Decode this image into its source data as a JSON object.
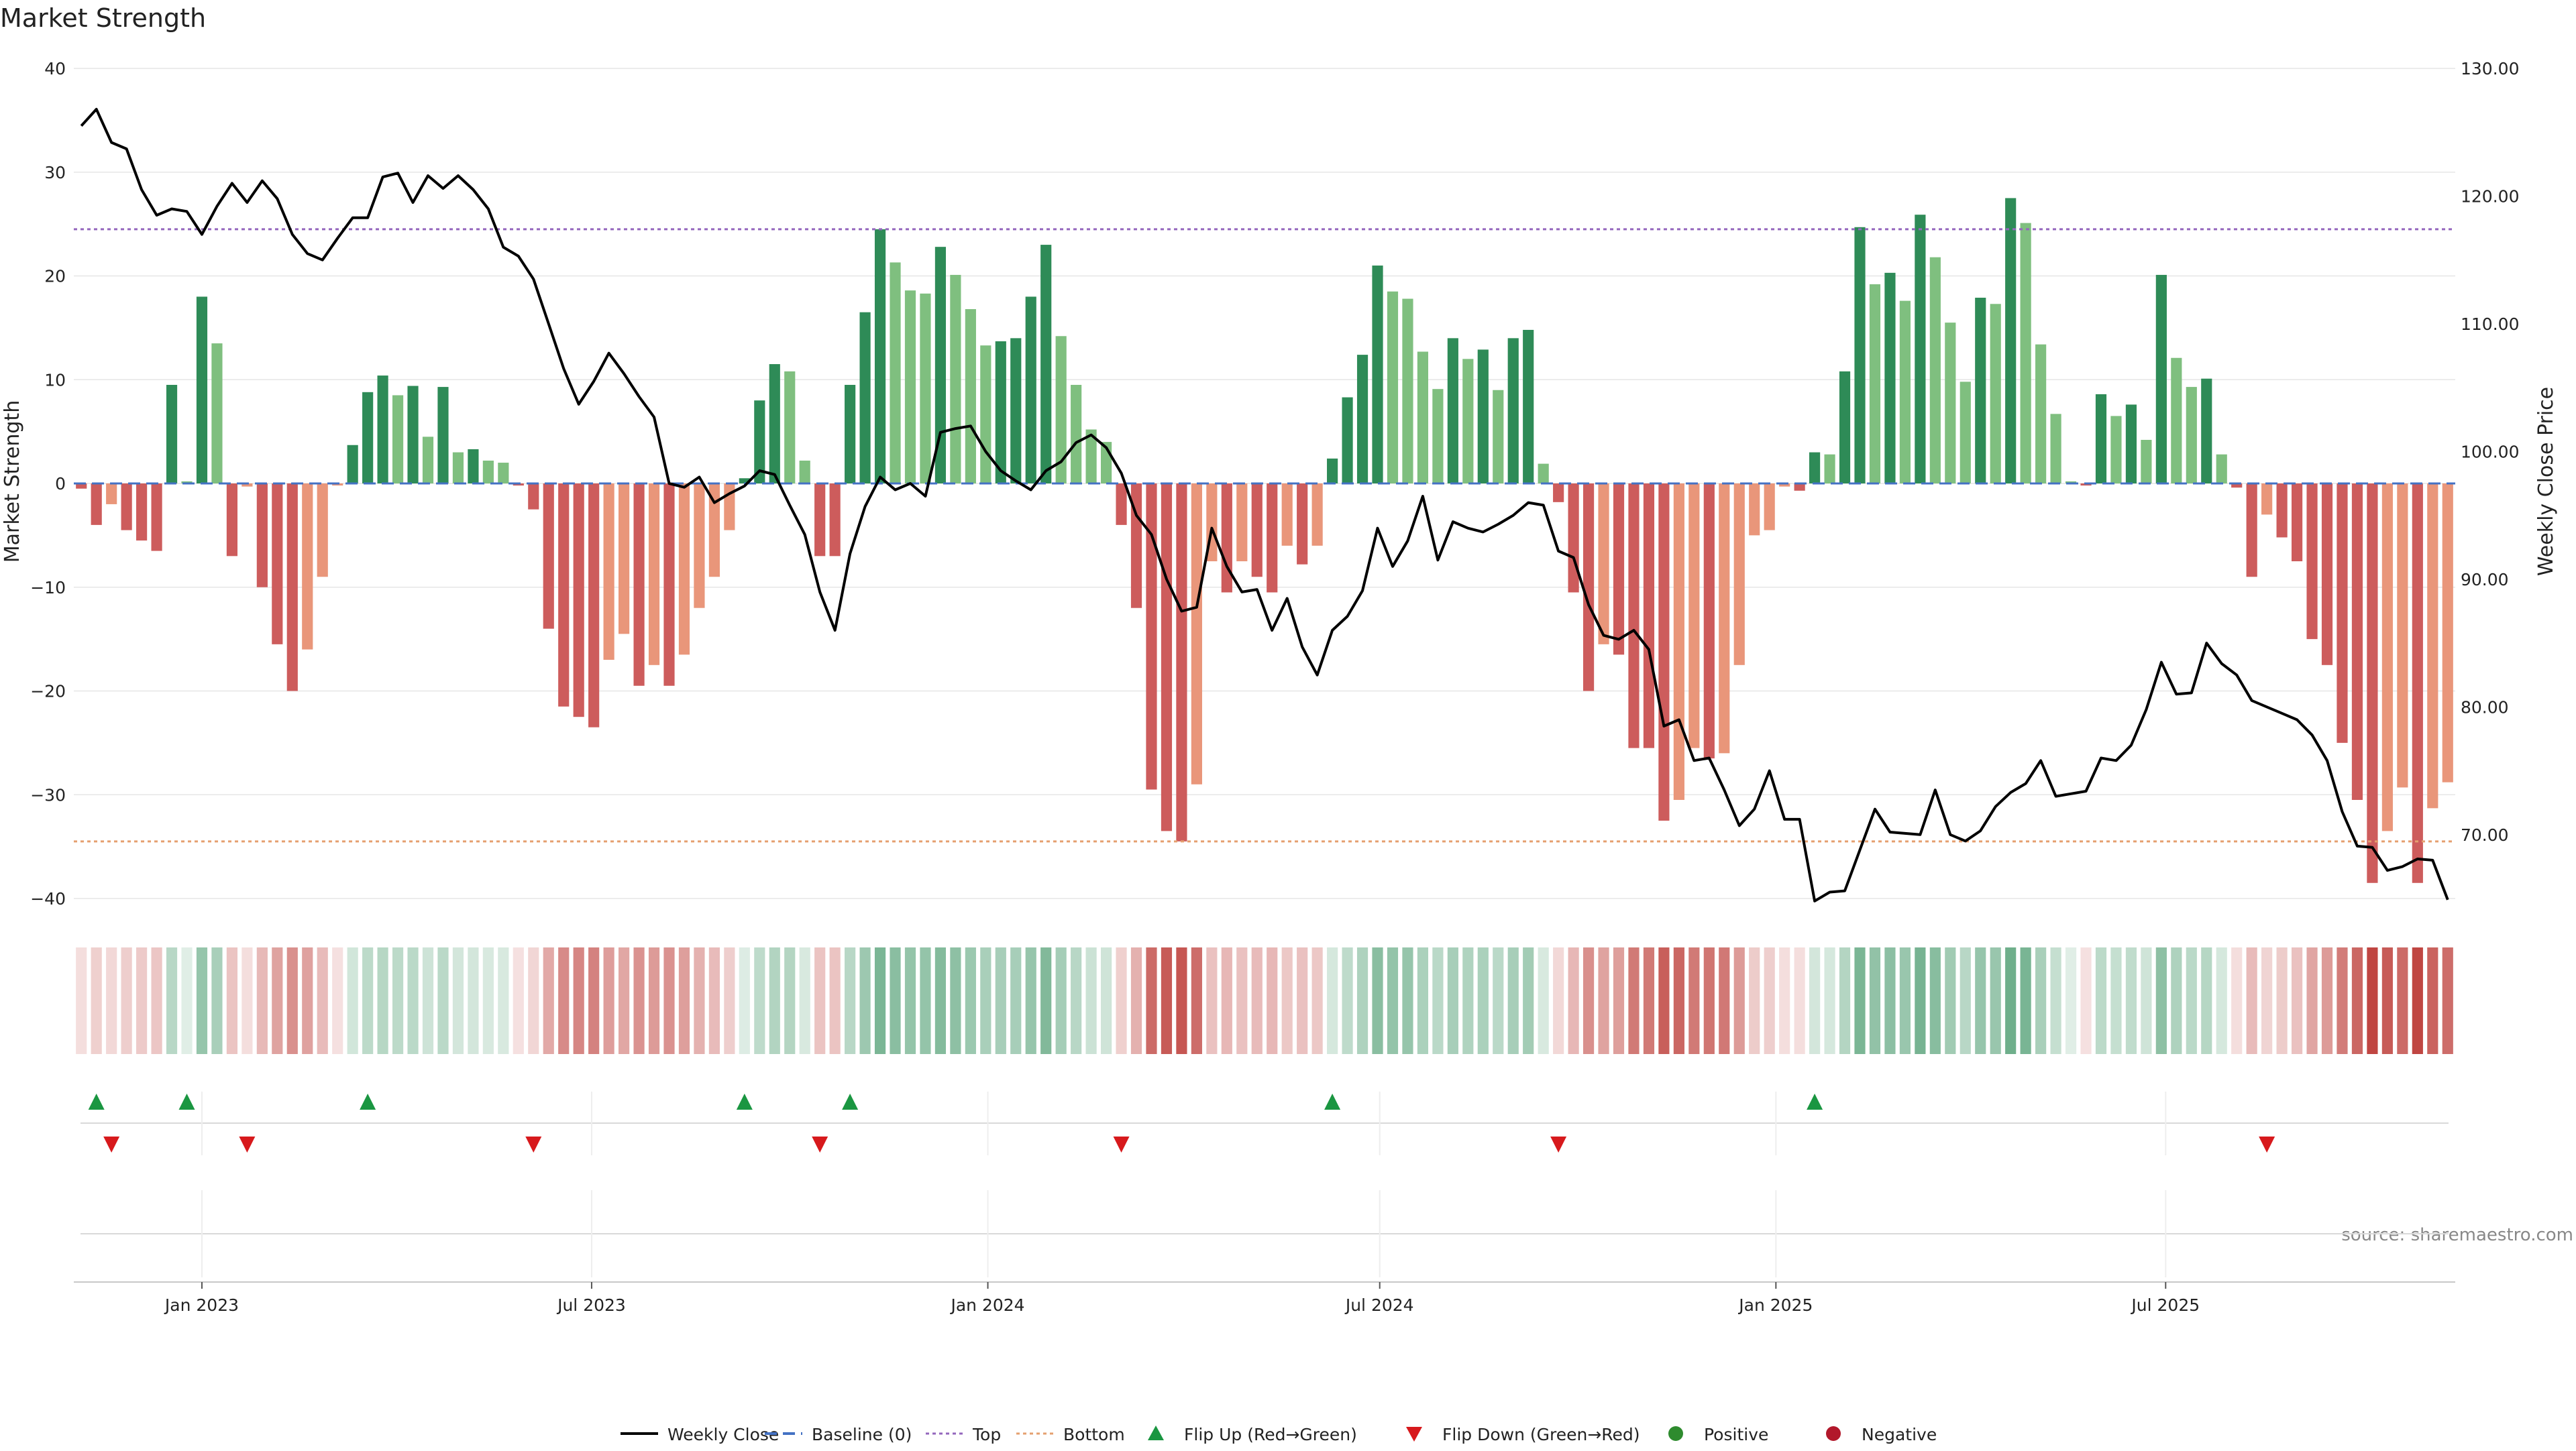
{
  "chart_data": {
    "type": "bar",
    "title": "Market Strength",
    "ylabel": "Market Strength",
    "y2label": "Weekly Close Price",
    "ylim": [
      -40,
      40
    ],
    "y2lim": [
      65,
      130
    ],
    "yticks": [
      40,
      30,
      20,
      10,
      0,
      -10,
      -20,
      -30,
      -40
    ],
    "yticks_labels": [
      "40",
      "30",
      "20",
      "10",
      "0",
      "−10",
      "−20",
      "−30",
      "−40"
    ],
    "y2ticks": [
      130,
      120,
      110,
      100,
      90,
      80,
      70
    ],
    "y2ticks_labels": [
      "130.00",
      "120.00",
      "110.00",
      "100.00",
      "90.00",
      "80.00",
      "70.00"
    ],
    "xticks": [
      "2023-01-01",
      "2023-07-01",
      "2024-01-01",
      "2024-07-01",
      "2025-01-01",
      "2025-07-01"
    ],
    "xticks_labels": [
      "Jan 2023",
      "Jul 2023",
      "Jan 2024",
      "Jul 2024",
      "Jan 2025",
      "Jul 2025"
    ],
    "x_start": "2022-11-06",
    "week_days": 7,
    "top_line": 24.5,
    "bottom_line": -34.5,
    "baseline": 0,
    "grid": true,
    "legend_position": "bottom-center",
    "series": [
      {
        "name": "Market Strength",
        "values": [
          -0.5,
          -4,
          -2,
          -4.5,
          -5.5,
          -6.5,
          9.5,
          0.2,
          18,
          13.5,
          -7,
          -0.3,
          -10,
          -15.5,
          -20,
          -16,
          -9,
          -0.2,
          3.7,
          8.8,
          10.4,
          8.5,
          9.4,
          4.5,
          9.3,
          3,
          3.3,
          2.2,
          2,
          -0.2,
          -2.5,
          -14,
          -21.5,
          -22.5,
          -23.5,
          -17,
          -14.5,
          -19.5,
          -17.5,
          -19.5,
          -16.5,
          -12,
          -9,
          -4.5,
          0.5,
          8,
          11.5,
          10.8,
          2.2,
          -7,
          -7,
          9.5,
          16.5,
          24.5,
          21.3,
          18.6,
          18.3,
          22.8,
          20.1,
          16.8,
          13.3,
          13.7,
          14,
          18,
          23,
          14.2,
          9.5,
          5.2,
          4,
          -4,
          -12,
          -29.5,
          -33.5,
          -34.5,
          -29,
          -7.5,
          -10.5,
          -7.5,
          -9,
          -10.5,
          -6,
          -7.8,
          -6,
          2.4,
          8.3,
          12.4,
          21,
          18.5,
          17.8,
          12.7,
          9.1,
          14,
          12,
          12.9,
          9,
          14,
          14.8,
          1.9,
          -1.8,
          -10.5,
          -20,
          -15.5,
          -16.5,
          -25.5,
          -25.5,
          -32.5,
          -30.5,
          -25.5,
          -26.5,
          -26,
          -17.5,
          -5,
          -4.5,
          -0.3,
          -0.7,
          3,
          2.8,
          10.8,
          24.7,
          19.2,
          20.3,
          17.6,
          25.9,
          21.8,
          15.5,
          9.8,
          17.9,
          17.3,
          27.5,
          25.1,
          13.4,
          6.7,
          0.2,
          -0.2,
          8.6,
          6.5,
          7.6,
          4.2,
          20.1,
          12.1,
          9.3,
          10.1,
          2.8,
          -0.4,
          -9,
          -3,
          -5.2,
          -7.5,
          -15,
          -17.5,
          -25,
          -30.5,
          -38.5,
          -33.5,
          -29.3,
          -38.5,
          -31.3,
          -28.8
        ]
      },
      {
        "name": "Weekly Close",
        "values": [
          125.5,
          126.8,
          124.2,
          123.7,
          120.5,
          118.5,
          119,
          118.8,
          117,
          119.2,
          121,
          119.5,
          121.2,
          119.8,
          117,
          115.5,
          115,
          116.7,
          118.3,
          118.3,
          121.5,
          121.8,
          119.5,
          121.6,
          120.6,
          121.6,
          120.5,
          119,
          116,
          115.3,
          113.5,
          110,
          106.5,
          103.7,
          105.5,
          107.7,
          106.1,
          104.3,
          102.7,
          97.5,
          97.2,
          98,
          96,
          96.7,
          97.3,
          98.5,
          98.2,
          95.8,
          93.5,
          89,
          86,
          92,
          95.7,
          98,
          97,
          97.5,
          96.5,
          101.5,
          101.8,
          102,
          100,
          98.5,
          97.7,
          97,
          98.5,
          99.2,
          100.7,
          101.3,
          100.3,
          98.3,
          95,
          93.5,
          90,
          87.5,
          87.8,
          94,
          91,
          89,
          89.2,
          86,
          88.5,
          84.7,
          82.5,
          86,
          87.1,
          89.1,
          94,
          91,
          93,
          96.5,
          91.5,
          94.5,
          94,
          93.7,
          94.3,
          95,
          96,
          95.8,
          92.2,
          91.7,
          88,
          85.6,
          85.3,
          86,
          84.5,
          78.5,
          79,
          75.8,
          76,
          73.5,
          70.7,
          72,
          75,
          71.2,
          71.2,
          64.8,
          65.5,
          65.6,
          68.8,
          72,
          70.2,
          70.1,
          70,
          73.5,
          70,
          69.5,
          70.3,
          72.2,
          73.3,
          74,
          75.8,
          73,
          73.2,
          73.4,
          76,
          75.8,
          77,
          79.8,
          83.5,
          81,
          81.1,
          85,
          83.4,
          82.5,
          80.5,
          80,
          79.5,
          79,
          77.8,
          75.8,
          71.8,
          69.1,
          69,
          67.2,
          67.5,
          68.1,
          68,
          64.9
        ]
      }
    ],
    "flip_up_weeks": [
      1,
      7,
      19,
      44,
      51,
      83,
      115
    ],
    "flip_down_weeks": [
      2,
      11,
      30,
      49,
      69,
      98,
      145
    ],
    "legend": [
      {
        "label": "Weekly Close",
        "symbol": "line",
        "color": "#000000"
      },
      {
        "label": "Baseline (0)",
        "symbol": "dash",
        "color": "#4472c4"
      },
      {
        "label": "Top",
        "symbol": "dot",
        "color": "#9467bd"
      },
      {
        "label": "Bottom",
        "symbol": "dot",
        "color": "#e5a070"
      },
      {
        "label": "Flip Up (Red→Green)",
        "symbol": "tri-up",
        "color": "#1a9641"
      },
      {
        "label": "Flip Down (Green→Red)",
        "symbol": "tri-down",
        "color": "#d7191c"
      },
      {
        "label": "Positive",
        "symbol": "circle",
        "color": "#2e8b2e"
      },
      {
        "label": "Negative",
        "symbol": "circle",
        "color": "#b2182b"
      }
    ],
    "source_text": "source: sharemaestro.com"
  },
  "colors": {
    "pos_strong": "#2e8b57",
    "pos_light": "#7fbf7f",
    "neg_strong": "#cd5c5c",
    "neg_light": "#e9967a",
    "price_line": "#000000",
    "baseline": "#4472c4",
    "top": "#9467bd",
    "bottom": "#e5a070",
    "flip_up": "#1a9641",
    "flip_down": "#d7191c",
    "grid": "#e6e6e6"
  }
}
